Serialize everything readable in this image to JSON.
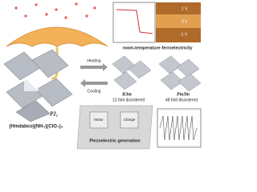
{
  "figure": {
    "ferro_label": "room-temperature ferroelectricity",
    "afm_labels": [
      "1 V",
      "0 V",
      "-1 V"
    ],
    "heating": "Heating",
    "cooling": "Cooling",
    "phase_low": "P2₁",
    "phase_mid": "R3m",
    "phase_mid_note": "12-fold disordered",
    "phase_high": "Pm3̄m",
    "phase_high_note": "48 fold disordered",
    "formula": "(Hmdabco)(NH₄)(ClO₄)₃",
    "device_labels": [
      "Motor",
      "Charge"
    ],
    "piezo_label": "Piezoelectric generation"
  }
}
